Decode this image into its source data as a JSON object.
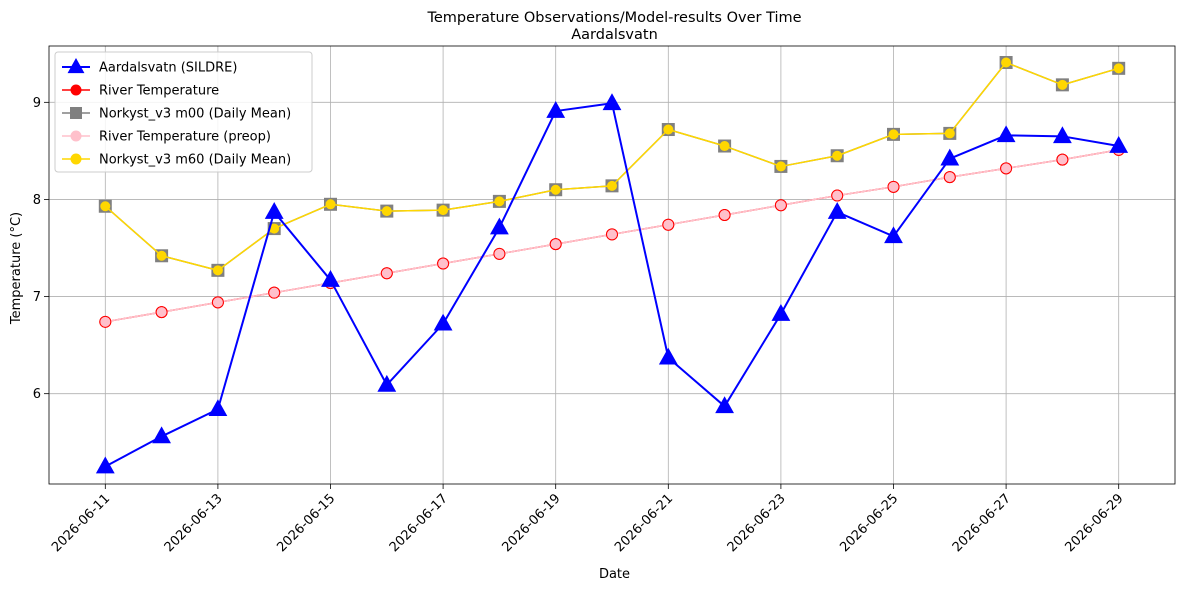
{
  "chart_data": {
    "type": "line",
    "title": "Temperature Observations/Model-results Over Time",
    "subtitle": "Aardalsvatn",
    "xlabel": "Date",
    "ylabel": "Temperature (°C)",
    "x": [
      "2026-06-11",
      "2026-06-12",
      "2026-06-13",
      "2026-06-14",
      "2026-06-15",
      "2026-06-16",
      "2026-06-17",
      "2026-06-18",
      "2026-06-19",
      "2026-06-20",
      "2026-06-21",
      "2026-06-22",
      "2026-06-23",
      "2026-06-24",
      "2026-06-25",
      "2026-06-26",
      "2026-06-27",
      "2026-06-28",
      "2026-06-29"
    ],
    "xticks": [
      "2026-06-11",
      "2026-06-13",
      "2026-06-15",
      "2026-06-17",
      "2026-06-19",
      "2026-06-21",
      "2026-06-23",
      "2026-06-25",
      "2026-06-27",
      "2026-06-29"
    ],
    "yticks": [
      "6",
      "7",
      "8",
      "9"
    ],
    "xlim": [
      "2026-06-10",
      "2026-06-30"
    ],
    "ylim": [
      5.07,
      9.58
    ],
    "grid": true,
    "legend_position": "top-left",
    "series": [
      {
        "name": "Aardalsvatn (SILDRE)",
        "color": "#0000ff",
        "marker": "triangle",
        "values": [
          5.25,
          5.56,
          5.84,
          7.87,
          7.17,
          6.09,
          6.72,
          7.71,
          8.91,
          8.99,
          6.37,
          5.87,
          6.82,
          7.87,
          7.62,
          8.42,
          8.66,
          8.65,
          8.55
        ]
      },
      {
        "name": "River Temperature",
        "color": "#ff0000",
        "marker": "circle",
        "values": [
          6.74,
          6.84,
          6.94,
          7.04,
          7.14,
          7.24,
          7.34,
          7.44,
          7.54,
          7.64,
          7.74,
          7.84,
          7.94,
          8.04,
          8.13,
          8.23,
          8.32,
          8.41,
          8.51
        ]
      },
      {
        "name": "Norkyst_v3 m00 (Daily Mean)",
        "color": "#808080",
        "marker": "square",
        "values": [
          7.93,
          7.42,
          7.27,
          7.7,
          7.95,
          7.88,
          7.89,
          7.98,
          8.1,
          8.14,
          8.72,
          8.55,
          8.34,
          8.45,
          8.67,
          8.68,
          9.41,
          9.18,
          9.35
        ]
      },
      {
        "name": "River Temperature (preop)",
        "color": "#ffc0cb",
        "marker": "circle",
        "values": [
          6.74,
          6.84,
          6.94,
          7.04,
          7.14,
          7.24,
          7.34,
          7.44,
          7.54,
          7.64,
          7.74,
          7.84,
          7.94,
          8.04,
          8.13,
          8.23,
          8.32,
          8.41,
          8.51
        ]
      },
      {
        "name": "Norkyst_v3 m60 (Daily Mean)",
        "color": "#ffd700",
        "marker": "circle",
        "values": [
          7.93,
          7.42,
          7.27,
          7.7,
          7.95,
          7.88,
          7.89,
          7.98,
          8.1,
          8.14,
          8.72,
          8.55,
          8.34,
          8.45,
          8.67,
          8.68,
          9.41,
          9.18,
          9.35
        ]
      }
    ]
  }
}
